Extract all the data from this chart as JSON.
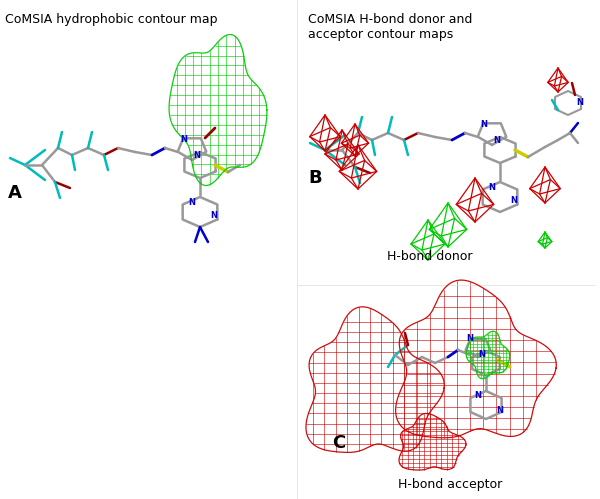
{
  "figure_width": 6.0,
  "figure_height": 4.99,
  "dpi": 100,
  "background_color": "#ffffff",
  "title_A": "CoMSIA hydrophobic contour map",
  "title_B": "CoMSIA H-bond donor and\nacceptor contour maps",
  "label_A": "A",
  "label_B": "B",
  "label_C": "C",
  "text_hbond_donor": "H-bond donor",
  "text_hbond_acceptor": "H-bond acceptor",
  "green_color": "#00cc00",
  "red_color": "#cc0000",
  "blue_color": "#0000cc",
  "cyan_color": "#00bbbb",
  "dark_gray": "#555555",
  "light_gray": "#aaaaaa",
  "dark_red_color": "#990000",
  "dark_green_color": "#006600",
  "yellow_color": "#cccc00",
  "bond_gray": "#999999",
  "white_gray": "#cccccc",
  "font_size_title": 9,
  "font_size_label": 13,
  "font_size_caption": 9
}
